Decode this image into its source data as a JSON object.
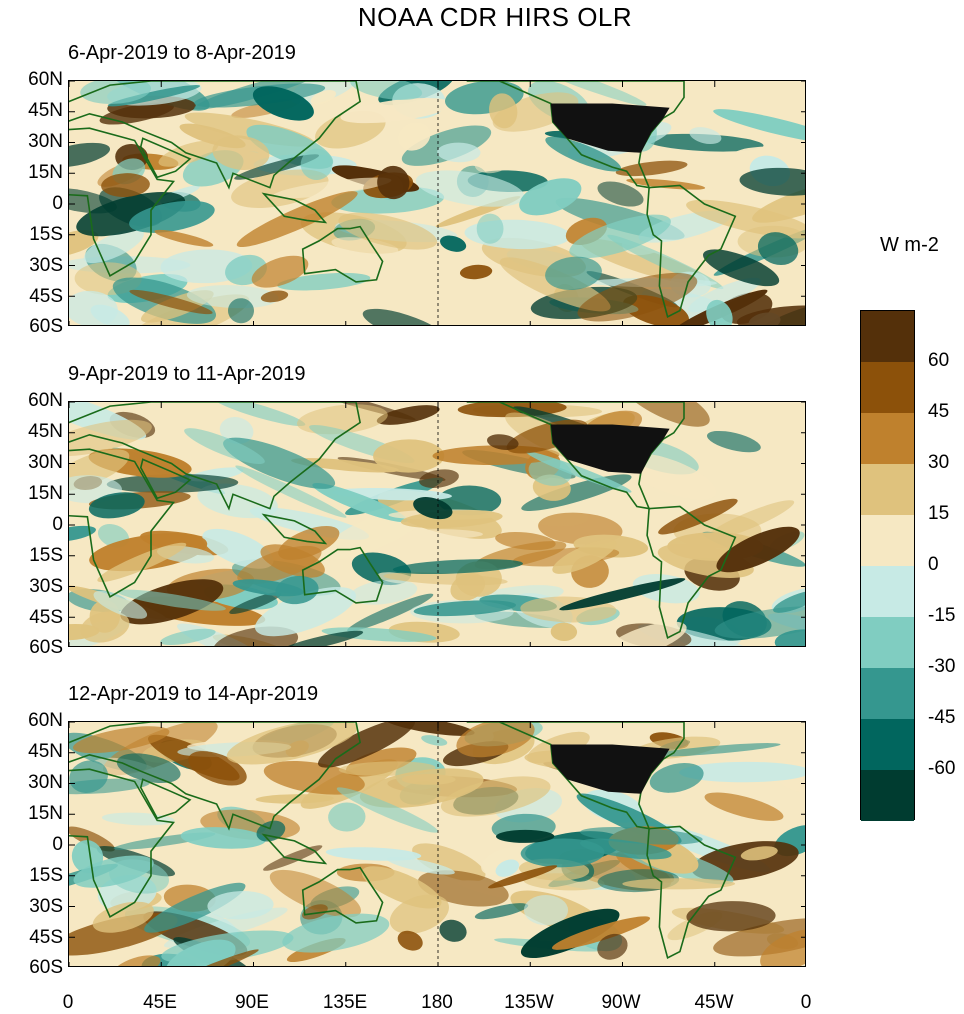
{
  "title": "NOAA CDR HIRS OLR",
  "panels": [
    {
      "period": "6-Apr-2019 to 8-Apr-2019"
    },
    {
      "period": "9-Apr-2019 to 11-Apr-2019"
    },
    {
      "period": "12-Apr-2019 to 14-Apr-2019"
    }
  ],
  "lat_labels": [
    "60N",
    "45N",
    "30N",
    "15N",
    "0",
    "15S",
    "30S",
    "45S",
    "60S"
  ],
  "lon_labels": [
    "0",
    "45E",
    "90E",
    "135E",
    "180",
    "135W",
    "90W",
    "45W",
    "0"
  ],
  "legend": {
    "unit": "W m-2",
    "labels": [
      "60",
      "45",
      "30",
      "15",
      "0",
      "-15",
      "-30",
      "-45",
      "-60"
    ],
    "colors": [
      "#54300a",
      "#8c510a",
      "#bf812d",
      "#dfc27d",
      "#f6e8c3",
      "#c7eae5",
      "#80cdc1",
      "#35978f",
      "#01665e",
      "#003c30"
    ]
  }
}
